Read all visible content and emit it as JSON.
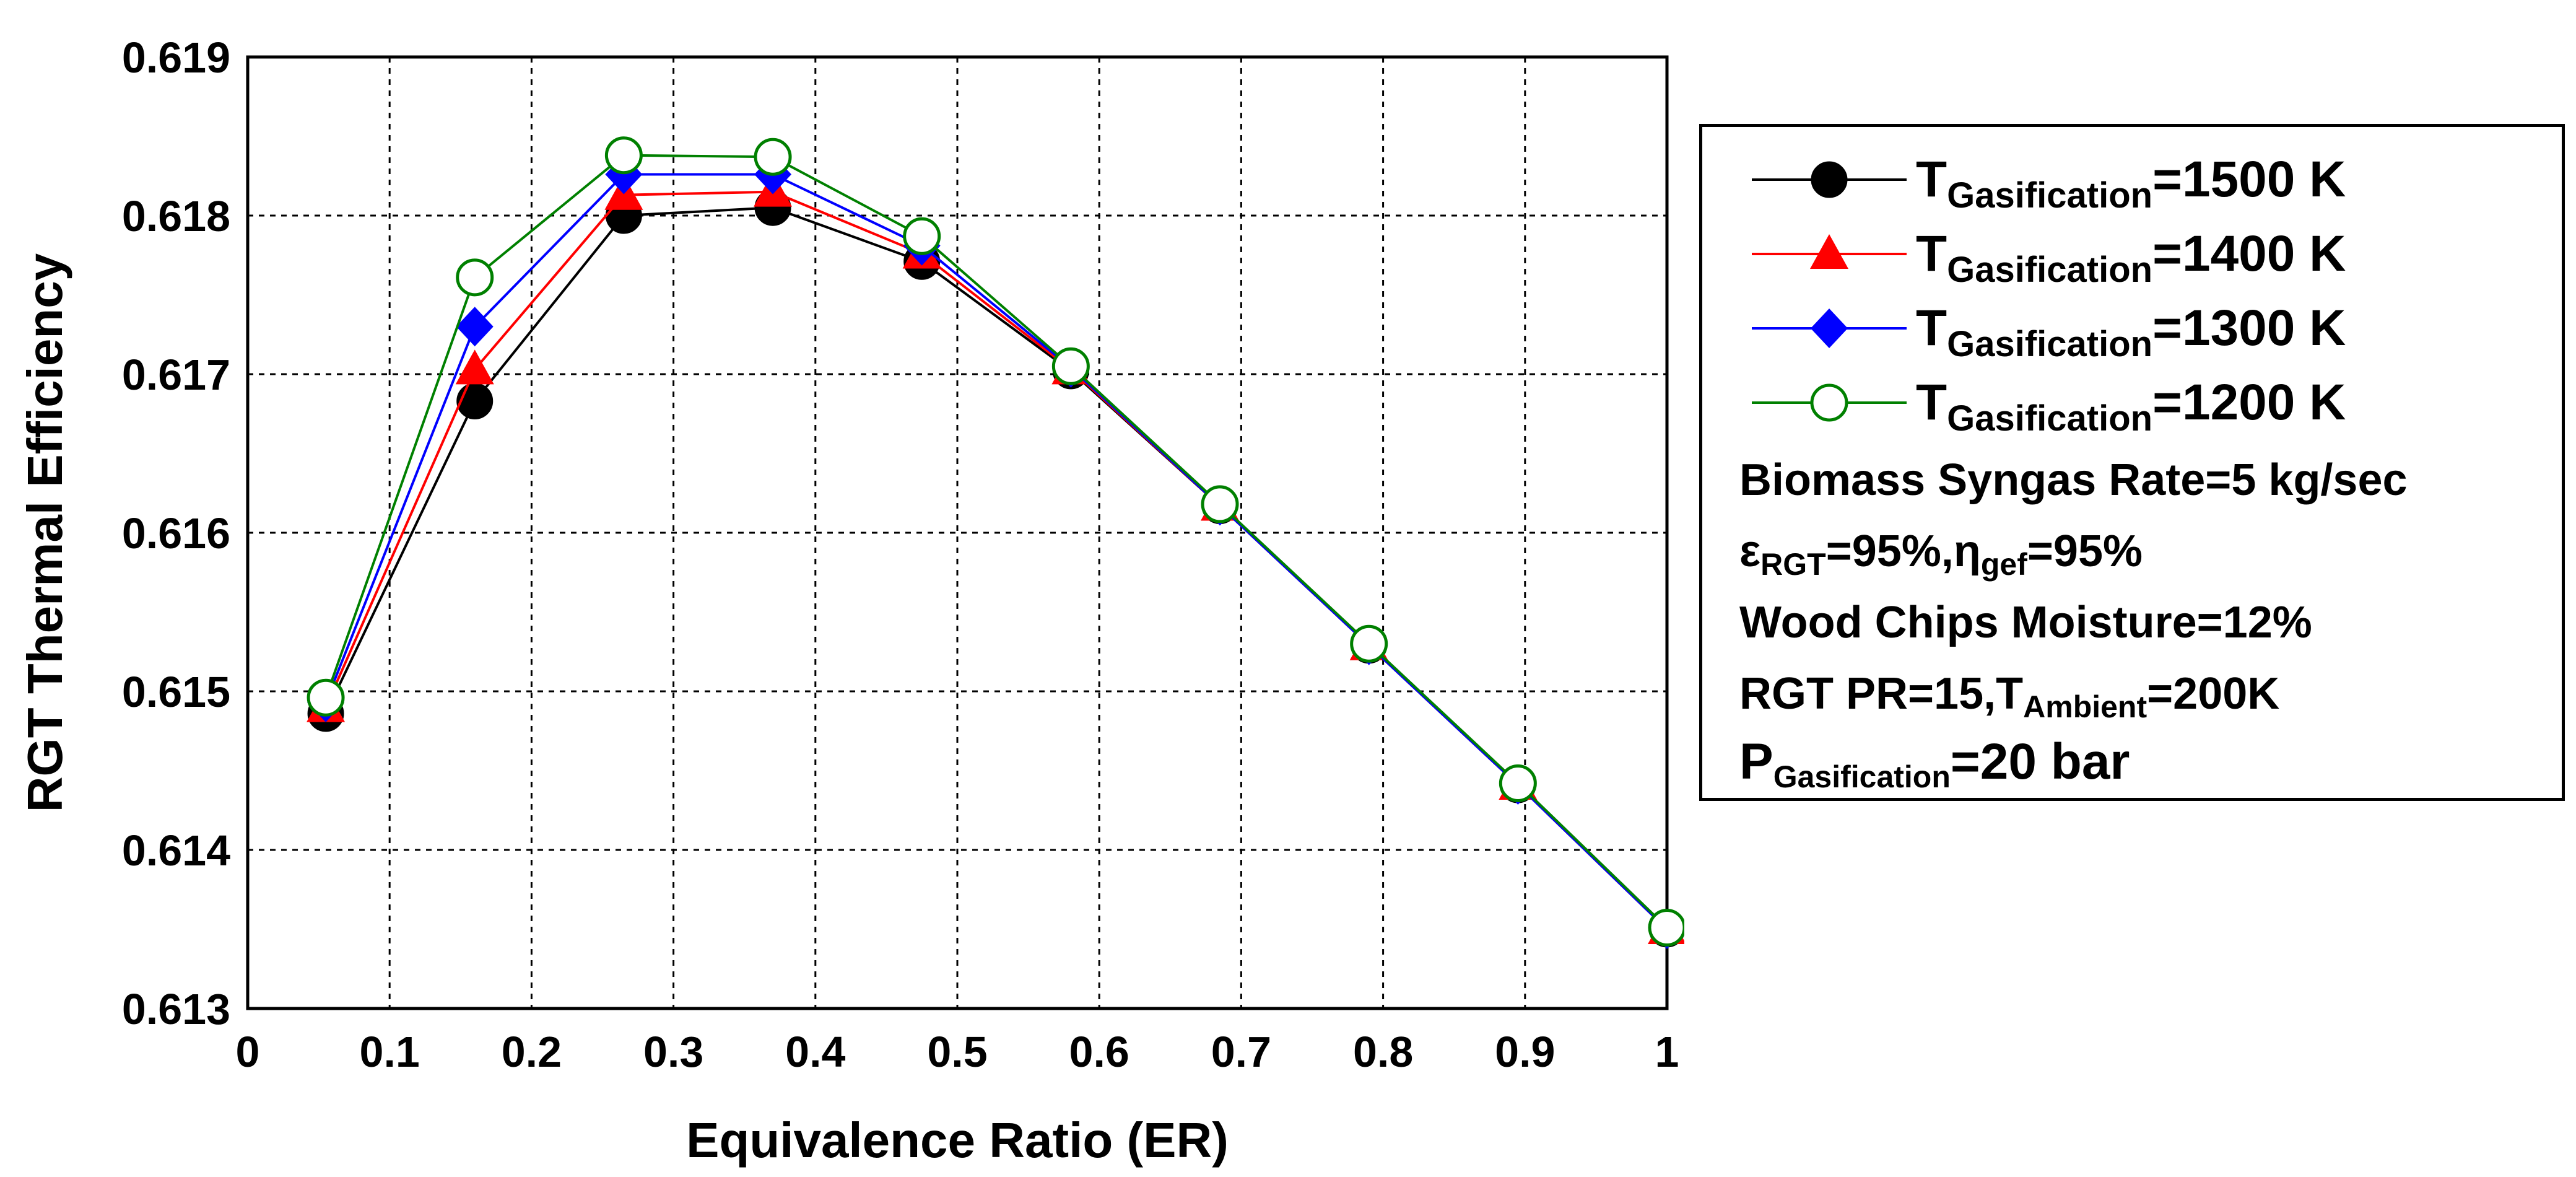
{
  "chart_data": {
    "type": "line",
    "xlabel": "Equivalence Ratio (ER)",
    "ylabel": "RGT Thermal Efficiency",
    "xlim": [
      0,
      1
    ],
    "ylim": [
      0.613,
      0.619
    ],
    "x_ticks": [
      "0",
      "0.1",
      "0.2",
      "0.3",
      "0.4",
      "0.5",
      "0.6",
      "0.7",
      "0.8",
      "0.9",
      "1"
    ],
    "y_ticks": [
      "0.613",
      "0.614",
      "0.615",
      "0.616",
      "0.617",
      "0.618",
      "0.619"
    ],
    "grid": true,
    "x": [
      0.055,
      0.16,
      0.265,
      0.37,
      0.475,
      0.58,
      0.685,
      0.79,
      0.895,
      1.0
    ],
    "series": [
      {
        "name": "1500 K",
        "color": "#000000",
        "marker": "filled-circle",
        "values": [
          0.61486,
          0.61683,
          0.618,
          0.61805,
          0.61771,
          0.61702,
          0.61617,
          0.61529,
          0.61441,
          0.6135
        ]
      },
      {
        "name": "1400 K",
        "color": "#ff0000",
        "marker": "filled-triangle",
        "values": [
          0.6149,
          0.61703,
          0.61813,
          0.61815,
          0.61776,
          0.61703,
          0.61617,
          0.61529,
          0.61441,
          0.6135
        ]
      },
      {
        "name": "1300 K",
        "color": "#0000ff",
        "marker": "filled-diamond",
        "values": [
          0.61493,
          0.6173,
          0.61826,
          0.61826,
          0.61781,
          0.61704,
          0.61617,
          0.61529,
          0.61441,
          0.6135
        ]
      },
      {
        "name": "1200 K",
        "color": "#008000",
        "marker": "open-circle",
        "values": [
          0.61496,
          0.61761,
          0.61838,
          0.61837,
          0.61787,
          0.61705,
          0.61618,
          0.6153,
          0.61442,
          0.61351
        ]
      }
    ]
  },
  "legend": {
    "t_prefix": "T",
    "t_sub": "Gasification",
    "entries": [
      {
        "value": "=1500 K",
        "color": "#000000",
        "marker": "filled-circle"
      },
      {
        "value": "=1400 K",
        "color": "#ff0000",
        "marker": "filled-triangle"
      },
      {
        "value": "=1300 K",
        "color": "#0000ff",
        "marker": "filled-diamond"
      },
      {
        "value": "=1200 K",
        "color": "#008000",
        "marker": "open-circle"
      }
    ],
    "notes": {
      "syngas": "Biomass Syngas Rate=5 kg/sec",
      "eps_symbol": "ε",
      "eps_sub": "RGT",
      "eps_value": "=95%,",
      "eta_symbol": "η",
      "eta_sub": "gef",
      "eta_value": "=95%",
      "moisture": "Wood Chips Moisture=12%",
      "pr_text": "RGT PR=15,",
      "tamb_prefix": "T",
      "tamb_sub": "Ambient",
      "tamb_value": "=200K",
      "p_prefix": "P",
      "p_sub": "Gasification",
      "p_value": "=20 bar"
    }
  }
}
